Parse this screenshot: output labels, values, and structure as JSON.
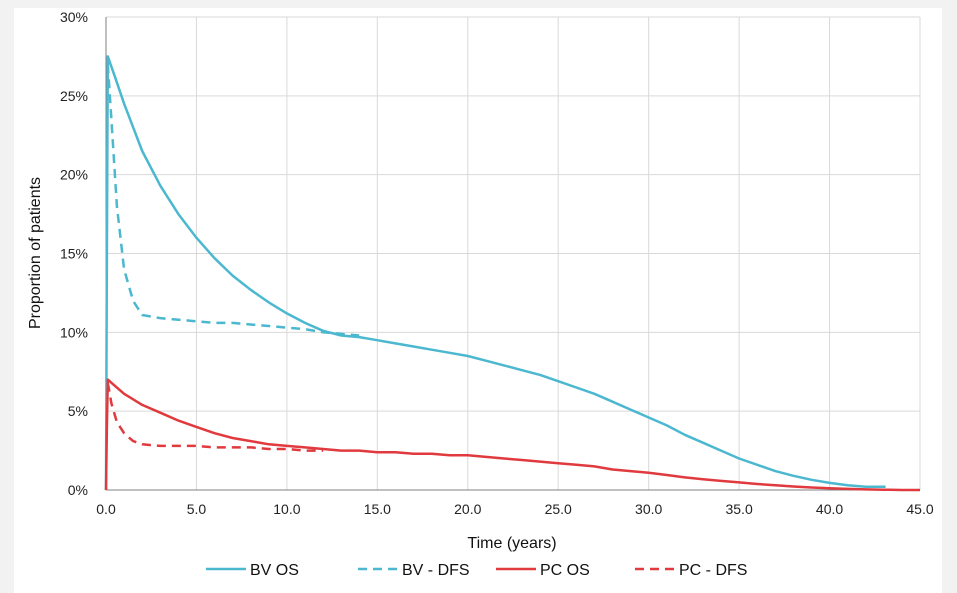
{
  "chart_data": {
    "type": "line",
    "xlabel": "Time (years)",
    "ylabel": "Proportion of patients",
    "xlim": [
      0,
      45
    ],
    "ylim": [
      0,
      0.3
    ],
    "x_ticks": [
      "0.0",
      "5.0",
      "10.0",
      "15.0",
      "20.0",
      "25.0",
      "30.0",
      "35.0",
      "40.0",
      "45.0"
    ],
    "y_ticks": [
      "0%",
      "5%",
      "10%",
      "15%",
      "20%",
      "25%",
      "30%"
    ],
    "grid": true,
    "legend_position": "bottom",
    "series": [
      {
        "name": "BV OS",
        "color": "#4bb8cf",
        "dash": "solid",
        "points": [
          [
            0,
            0
          ],
          [
            0.05,
            0.15
          ],
          [
            0.1,
            0.275
          ],
          [
            0.5,
            0.262
          ],
          [
            1,
            0.245
          ],
          [
            2,
            0.215
          ],
          [
            3,
            0.193
          ],
          [
            4,
            0.175
          ],
          [
            5,
            0.16
          ],
          [
            6,
            0.147
          ],
          [
            7,
            0.136
          ],
          [
            8,
            0.127
          ],
          [
            9,
            0.119
          ],
          [
            10,
            0.112
          ],
          [
            11,
            0.106
          ],
          [
            12,
            0.101
          ],
          [
            13,
            0.098
          ],
          [
            14,
            0.097
          ],
          [
            15,
            0.095
          ],
          [
            16,
            0.093
          ],
          [
            17,
            0.091
          ],
          [
            18,
            0.089
          ],
          [
            19,
            0.087
          ],
          [
            20,
            0.085
          ],
          [
            21,
            0.082
          ],
          [
            22,
            0.079
          ],
          [
            23,
            0.076
          ],
          [
            24,
            0.073
          ],
          [
            25,
            0.069
          ],
          [
            26,
            0.065
          ],
          [
            27,
            0.061
          ],
          [
            28,
            0.056
          ],
          [
            29,
            0.051
          ],
          [
            30,
            0.046
          ],
          [
            31,
            0.041
          ],
          [
            32,
            0.035
          ],
          [
            33,
            0.03
          ],
          [
            34,
            0.025
          ],
          [
            35,
            0.02
          ],
          [
            36,
            0.016
          ],
          [
            37,
            0.012
          ],
          [
            38,
            0.009
          ],
          [
            39,
            0.0065
          ],
          [
            40,
            0.0045
          ],
          [
            41,
            0.003
          ],
          [
            42,
            0.002
          ],
          [
            43.1,
            0.002
          ]
        ]
      },
      {
        "name": "BV - DFS",
        "color": "#4bb8cf",
        "dash": "dashed",
        "points": [
          [
            0.1,
            0.27
          ],
          [
            0.3,
            0.235
          ],
          [
            0.6,
            0.18
          ],
          [
            1,
            0.14
          ],
          [
            1.5,
            0.12
          ],
          [
            2,
            0.111
          ],
          [
            3,
            0.109
          ],
          [
            4,
            0.108
          ],
          [
            5,
            0.107
          ],
          [
            6,
            0.106
          ],
          [
            7,
            0.106
          ],
          [
            8,
            0.105
          ],
          [
            9,
            0.104
          ],
          [
            10,
            0.103
          ],
          [
            11,
            0.102
          ],
          [
            12,
            0.1
          ],
          [
            13,
            0.099
          ],
          [
            14,
            0.098
          ]
        ]
      },
      {
        "name": "PC OS",
        "color": "#e03a3e",
        "dash": "solid",
        "points": [
          [
            0,
            0
          ],
          [
            0.05,
            0.04
          ],
          [
            0.1,
            0.07
          ],
          [
            0.5,
            0.066
          ],
          [
            1,
            0.061
          ],
          [
            2,
            0.054
          ],
          [
            3,
            0.049
          ],
          [
            4,
            0.044
          ],
          [
            5,
            0.04
          ],
          [
            6,
            0.036
          ],
          [
            7,
            0.033
          ],
          [
            8,
            0.031
          ],
          [
            9,
            0.029
          ],
          [
            10,
            0.028
          ],
          [
            11,
            0.027
          ],
          [
            12,
            0.026
          ],
          [
            13,
            0.025
          ],
          [
            14,
            0.025
          ],
          [
            15,
            0.024
          ],
          [
            16,
            0.024
          ],
          [
            17,
            0.023
          ],
          [
            18,
            0.023
          ],
          [
            19,
            0.022
          ],
          [
            20,
            0.022
          ],
          [
            21,
            0.021
          ],
          [
            22,
            0.02
          ],
          [
            23,
            0.019
          ],
          [
            24,
            0.018
          ],
          [
            25,
            0.017
          ],
          [
            26,
            0.016
          ],
          [
            27,
            0.015
          ],
          [
            28,
            0.013
          ],
          [
            29,
            0.012
          ],
          [
            30,
            0.011
          ],
          [
            31,
            0.0095
          ],
          [
            32,
            0.008
          ],
          [
            33,
            0.0068
          ],
          [
            34,
            0.0058
          ],
          [
            35,
            0.0048
          ],
          [
            36,
            0.0038
          ],
          [
            37,
            0.003
          ],
          [
            38,
            0.0022
          ],
          [
            39,
            0.0016
          ],
          [
            40,
            0.0011
          ],
          [
            41,
            0.0007
          ],
          [
            42,
            0.0004
          ],
          [
            43,
            0.0002
          ],
          [
            44,
            0
          ],
          [
            45,
            0
          ]
        ]
      },
      {
        "name": "PC - DFS",
        "color": "#e03a3e",
        "dash": "dashed",
        "points": [
          [
            0.1,
            0.068
          ],
          [
            0.3,
            0.055
          ],
          [
            0.6,
            0.043
          ],
          [
            1,
            0.036
          ],
          [
            1.5,
            0.031
          ],
          [
            2,
            0.029
          ],
          [
            3,
            0.028
          ],
          [
            4,
            0.028
          ],
          [
            5,
            0.028
          ],
          [
            6,
            0.027
          ],
          [
            7,
            0.027
          ],
          [
            8,
            0.027
          ],
          [
            9,
            0.026
          ],
          [
            10,
            0.026
          ],
          [
            11,
            0.025
          ],
          [
            12,
            0.025
          ]
        ]
      }
    ]
  }
}
